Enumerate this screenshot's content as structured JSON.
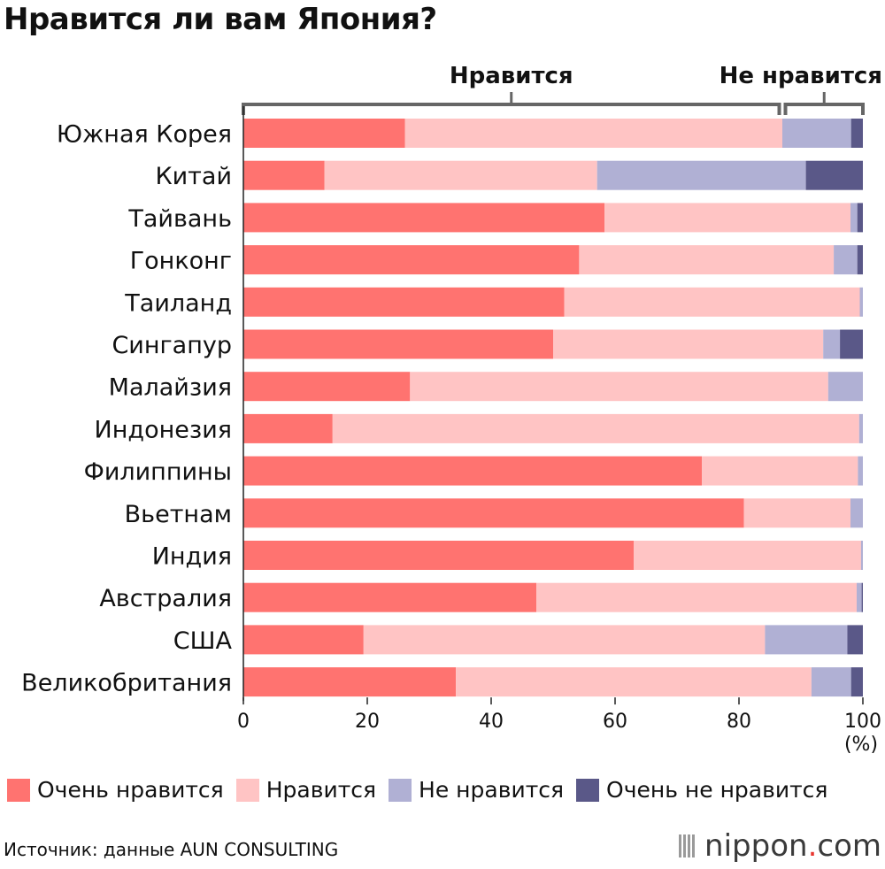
{
  "title": "Нравится ли вам Япония?",
  "chart_data": {
    "type": "bar",
    "orientation": "horizontal",
    "stacked": true,
    "categories": [
      "Южная Корея",
      "Китай",
      "Тайвань",
      "Гонконг",
      "Таиланд",
      "Сингапур",
      "Малайзия",
      "Индонезия",
      "Филиппины",
      "Вьетнам",
      "Индия",
      "Австралия",
      "США",
      "Великобритания"
    ],
    "series": [
      {
        "name": "Очень нравится",
        "color": "#ff7370",
        "values": [
          26.1,
          13.1,
          58.3,
          54.2,
          51.8,
          50.0,
          26.9,
          14.4,
          74.0,
          80.8,
          63.0,
          47.3,
          19.4,
          34.3
        ]
      },
      {
        "name": "Нравится",
        "color": "#ffc4c4",
        "values": [
          60.9,
          44.0,
          39.7,
          41.1,
          47.7,
          43.6,
          67.5,
          85.0,
          25.2,
          17.2,
          36.7,
          51.7,
          64.8,
          57.4
        ]
      },
      {
        "name": "Не нравится",
        "color": "#b0b0d4",
        "values": [
          11.1,
          33.7,
          1.1,
          3.8,
          0.5,
          2.7,
          5.6,
          0.6,
          0.8,
          2.0,
          0.3,
          0.8,
          13.3,
          6.4
        ]
      },
      {
        "name": "Очень не нравится",
        "color": "#5a5888",
        "values": [
          1.9,
          9.2,
          0.9,
          0.9,
          0.0,
          3.7,
          0.0,
          0.0,
          0.0,
          0.0,
          0.0,
          0.2,
          2.5,
          1.9
        ]
      }
    ],
    "xlim": [
      0,
      100
    ],
    "xticks": [
      0,
      20,
      40,
      60,
      80,
      100
    ],
    "xunit": "(%)",
    "bracket_like": {
      "label": "Нравится",
      "range": [
        0,
        87
      ]
    },
    "bracket_dislike": {
      "label": "Не нравится",
      "range": [
        87,
        100
      ]
    },
    "legend_position": "bottom"
  },
  "source": "Источник: данные AUN CONSULTING",
  "brand": {
    "name": "nippon",
    "dot": ".",
    "suffix": "com"
  }
}
